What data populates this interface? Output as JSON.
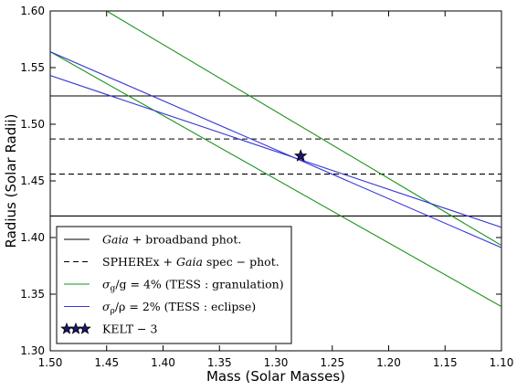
{
  "chart_data": {
    "type": "line",
    "title": "",
    "xlabel": "Mass (Solar Masses)",
    "ylabel": "Radius (Solar Radii)",
    "xlim": [
      1.5,
      1.1
    ],
    "ylim": [
      1.3,
      1.6
    ],
    "x_reversed": true,
    "grid": false,
    "legend_position": "lower-left",
    "xticks": [
      "1.50",
      "1.45",
      "1.40",
      "1.35",
      "1.30",
      "1.25",
      "1.20",
      "1.15",
      "1.10"
    ],
    "xtick_values": [
      1.5,
      1.45,
      1.4,
      1.35,
      1.3,
      1.25,
      1.2,
      1.15,
      1.1
    ],
    "yticks": [
      "1.30",
      "1.35",
      "1.40",
      "1.45",
      "1.50",
      "1.55",
      "1.60"
    ],
    "ytick_values": [
      1.3,
      1.35,
      1.4,
      1.45,
      1.5,
      1.55,
      1.6
    ],
    "colors": {
      "black": "#000000",
      "green": "#1a931a",
      "blue": "#3535d8",
      "star_fill": "#18186e"
    },
    "series": [
      {
        "name": "Gaia + broadband phot.",
        "color": "#000000",
        "dash": "solid",
        "lines": [
          {
            "x": [
              1.5,
              1.1
            ],
            "y": [
              1.525,
              1.525
            ]
          },
          {
            "x": [
              1.5,
              1.1
            ],
            "y": [
              1.419,
              1.419
            ]
          }
        ]
      },
      {
        "name": "SPHEREx + Gaia spec − phot.",
        "color": "#000000",
        "dash": "dashed",
        "lines": [
          {
            "x": [
              1.5,
              1.1
            ],
            "y": [
              1.487,
              1.487
            ]
          },
          {
            "x": [
              1.5,
              1.1
            ],
            "y": [
              1.456,
              1.456
            ]
          }
        ]
      },
      {
        "name": "σg/g = 4% (TESS: granulation)",
        "color": "#1a931a",
        "dash": "solid",
        "lines": [
          {
            "x": [
              1.45,
              1.1
            ],
            "y": [
              1.6,
              1.393
            ]
          },
          {
            "x": [
              1.5,
              1.1
            ],
            "y": [
              1.564,
              1.339
            ]
          }
        ]
      },
      {
        "name": "σρ/ρ = 2% (TESS: eclipse)",
        "color": "#3535d8",
        "dash": "solid",
        "lines": [
          {
            "x": [
              1.5,
              1.1
            ],
            "y": [
              1.564,
              1.391
            ]
          },
          {
            "x": [
              1.5,
              1.1
            ],
            "y": [
              1.543,
              1.409
            ]
          }
        ]
      }
    ],
    "points": [
      {
        "name": "KELT − 3",
        "x": 1.278,
        "y": 1.472,
        "color": "#18186e",
        "marker": "star"
      }
    ],
    "legend": [
      {
        "math": "Gaia",
        "rest": " + broadband phot.",
        "kind": "line",
        "color": "#000000",
        "dash": "solid"
      },
      {
        "pre": "SPHEREx + ",
        "math": "Gaia",
        "rest": " spec − phot.",
        "kind": "line",
        "color": "#000000",
        "dash": "dashed"
      },
      {
        "main": "σ",
        "sub": "g",
        "rest": "/g = 4% (TESS : granulation)",
        "kind": "line",
        "color": "#1a931a",
        "dash": "solid"
      },
      {
        "main": "σ",
        "sub": "ρ",
        "rest": "/ρ = 2% (TESS : eclipse)",
        "kind": "line",
        "color": "#3535d8",
        "dash": "solid"
      },
      {
        "rest": "KELT − 3",
        "kind": "star",
        "color": "#18186e"
      }
    ]
  }
}
